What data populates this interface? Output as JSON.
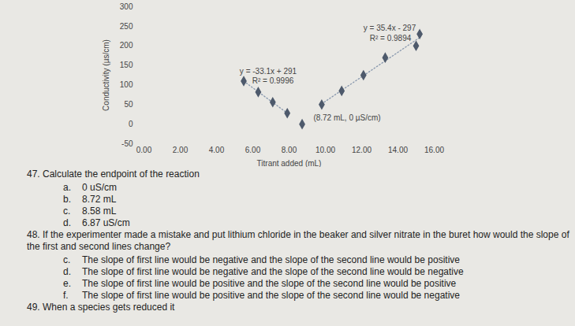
{
  "chart_data": {
    "type": "scatter",
    "x_label": "Titrant added (mL)",
    "y_label": "Conductivity (µs/cm)",
    "xlim": [
      0,
      16
    ],
    "xticks": [
      {
        "value": 0,
        "label": "0.00"
      },
      {
        "value": 2,
        "label": "2.00"
      },
      {
        "value": 4,
        "label": "4.00"
      },
      {
        "value": 6,
        "label": "6.00"
      },
      {
        "value": 8,
        "label": "8.00"
      },
      {
        "value": 10,
        "label": "10.00"
      },
      {
        "value": 12,
        "label": "12.00"
      },
      {
        "value": 14,
        "label": "14.00"
      },
      {
        "value": 16,
        "label": "16.00"
      }
    ],
    "ylim": [
      -50,
      300
    ],
    "yticks": [
      -50,
      0,
      50,
      100,
      150,
      200,
      250,
      300
    ],
    "grid": false,
    "marker": "diamond",
    "series": [
      {
        "x": [
          5.5,
          6.3,
          7.1,
          7.9
        ],
        "values": [
          110,
          82,
          56,
          28
        ],
        "color": "#4e5a6c",
        "line_style": "dotted"
      },
      {
        "x": [
          8.72
        ],
        "values": [
          0
        ],
        "color": "#4e5a6c"
      },
      {
        "x": [
          9.8,
          10.9,
          12.1,
          13.3,
          15.0,
          15.2
        ],
        "values": [
          50,
          85,
          125,
          170,
          200,
          230
        ],
        "color": "#4e5a6c",
        "line_style": "dotted"
      }
    ],
    "annotations": [
      "y = -33.1x + 291",
      "R² = 0.9996",
      "y = 35.4x - 297",
      "R² = 0.9894",
      "(8.72 mL, 0 µS/cm)"
    ]
  },
  "questions": [
    {
      "number": "47.",
      "text": "Calculate the endpoint of the reaction",
      "options": [
        {
          "letter": "a.",
          "text": "0 uS/cm"
        },
        {
          "letter": "b.",
          "text": "8.72 mL"
        },
        {
          "letter": "c.",
          "text": "8.58 mL"
        },
        {
          "letter": "d.",
          "text": "6.87 uS/cm"
        }
      ]
    },
    {
      "number": "48.",
      "text": "If the experimenter made a mistake and put lithium chloride in the beaker and silver nitrate in the buret how would the slope of the first and second lines change?",
      "options": [
        {
          "letter": "c.",
          "text": "The slope of first line would be negative and the slope of the second line would be positive"
        },
        {
          "letter": "d.",
          "text": "The slope of first line would be negative and the slope of the second line would be negative"
        },
        {
          "letter": "e.",
          "text": "The slope of first line would be positive and the slope of the second line would be positive"
        },
        {
          "letter": "f.",
          "text": "The slope of first line would be positive and the slope of the second line would be negative"
        }
      ]
    },
    {
      "number": "49.",
      "text": "When a species gets reduced it",
      "options": []
    }
  ]
}
